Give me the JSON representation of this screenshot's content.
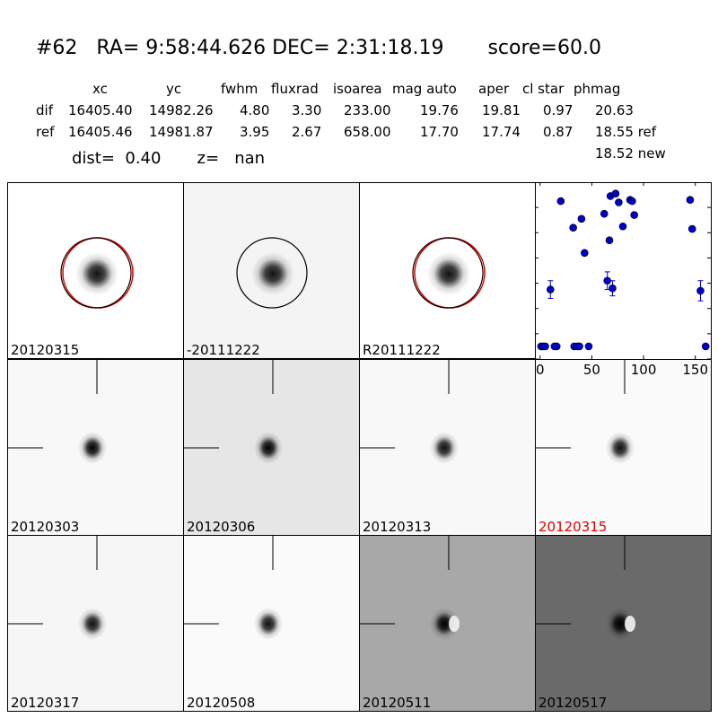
{
  "header": {
    "title": "#62   RA= 9:58:44.626 DEC= 2:31:18.19       score=60.0",
    "table_header": "xc",
    "columns": [
      "xc",
      "yc",
      "fwhm",
      "fluxrad",
      "isoarea",
      "mag auto",
      "aper",
      "cl star",
      "phmag"
    ],
    "rows": [
      {
        "label": "dif",
        "values": [
          "16405.40",
          "14982.26",
          "4.80",
          "3.30",
          "233.00",
          "19.76",
          "19.81",
          "0.97",
          "20.63"
        ]
      },
      {
        "label": "ref",
        "values": [
          "16405.46",
          "14981.87",
          "3.95",
          "2.67",
          "658.00",
          "17.70",
          "17.74",
          "0.87",
          "18.55 ref"
        ]
      }
    ],
    "extra_phmag": "18.52 new",
    "dist_line": "dist=  0.40       z=   nan"
  },
  "panels": [
    {
      "label": "20120315",
      "bg": "#ffffff",
      "circle": true,
      "red_circle": true,
      "crosshair": false,
      "blob": "#111"
    },
    {
      "label": "-20111222",
      "bg": "#f4f4f4",
      "circle": true,
      "red_circle": false,
      "crosshair": false,
      "blob": "#111"
    },
    {
      "label": "R20111222",
      "bg": "#ffffff",
      "circle": true,
      "red_circle": true,
      "crosshair": false,
      "blob": "#111"
    },
    {
      "label": "20120303",
      "bg": "#f8f8f8",
      "circle": false,
      "crosshair": true,
      "blob": "#000"
    },
    {
      "label": "20120306",
      "bg": "#e6e6e6",
      "circle": false,
      "crosshair": true,
      "blob": "#000"
    },
    {
      "label": "20120313",
      "bg": "#f8f8f8",
      "circle": false,
      "crosshair": true,
      "blob": "#111"
    },
    {
      "label": "20120315",
      "bg": "#fafafa",
      "circle": false,
      "crosshair": true,
      "blob": "#111",
      "label_color": "red"
    },
    {
      "label": "20120317",
      "bg": "#f6f6f6",
      "circle": false,
      "crosshair": true,
      "blob": "#111"
    },
    {
      "label": "20120508",
      "bg": "#fafafa",
      "circle": false,
      "crosshair": true,
      "blob": "#111"
    },
    {
      "label": "20120511",
      "bg": "#a8a8a8",
      "circle": false,
      "crosshair": true,
      "blob": "#000",
      "dipole": true
    },
    {
      "label": "20120517",
      "bg": "#6a6a6a",
      "circle": false,
      "crosshair": true,
      "blob": "#000",
      "dipole": true
    }
  ],
  "chart_data": {
    "type": "scatter",
    "xlim": [
      -5,
      165
    ],
    "ylim": [
      26,
      19
    ],
    "xticks": [
      0,
      50,
      100,
      150
    ],
    "yticks": [
      19,
      20,
      21,
      22,
      23,
      24,
      25,
      26
    ],
    "color": "#0000cc",
    "points": [
      {
        "x": 1,
        "y": 25.5
      },
      {
        "x": 3,
        "y": 25.5
      },
      {
        "x": 5,
        "y": 25.5
      },
      {
        "x": 10,
        "y": 23.25,
        "err": 0.35
      },
      {
        "x": 14,
        "y": 25.5
      },
      {
        "x": 16,
        "y": 25.5
      },
      {
        "x": 20,
        "y": 19.75
      },
      {
        "x": 32,
        "y": 20.8
      },
      {
        "x": 33,
        "y": 25.5
      },
      {
        "x": 36,
        "y": 25.5
      },
      {
        "x": 38,
        "y": 25.5
      },
      {
        "x": 40,
        "y": 20.45
      },
      {
        "x": 43,
        "y": 21.8
      },
      {
        "x": 47,
        "y": 25.5
      },
      {
        "x": 62,
        "y": 20.25
      },
      {
        "x": 65,
        "y": 22.9,
        "err": 0.35
      },
      {
        "x": 67,
        "y": 21.3
      },
      {
        "x": 68,
        "y": 19.55
      },
      {
        "x": 70,
        "y": 23.2,
        "err": 0.3
      },
      {
        "x": 73,
        "y": 19.45
      },
      {
        "x": 76,
        "y": 19.8
      },
      {
        "x": 80,
        "y": 20.75
      },
      {
        "x": 87,
        "y": 19.7
      },
      {
        "x": 89,
        "y": 19.75
      },
      {
        "x": 91,
        "y": 20.3
      },
      {
        "x": 145,
        "y": 19.7
      },
      {
        "x": 147,
        "y": 20.85
      },
      {
        "x": 155,
        "y": 23.3,
        "err": 0.4
      },
      {
        "x": 160,
        "y": 25.5
      }
    ]
  }
}
